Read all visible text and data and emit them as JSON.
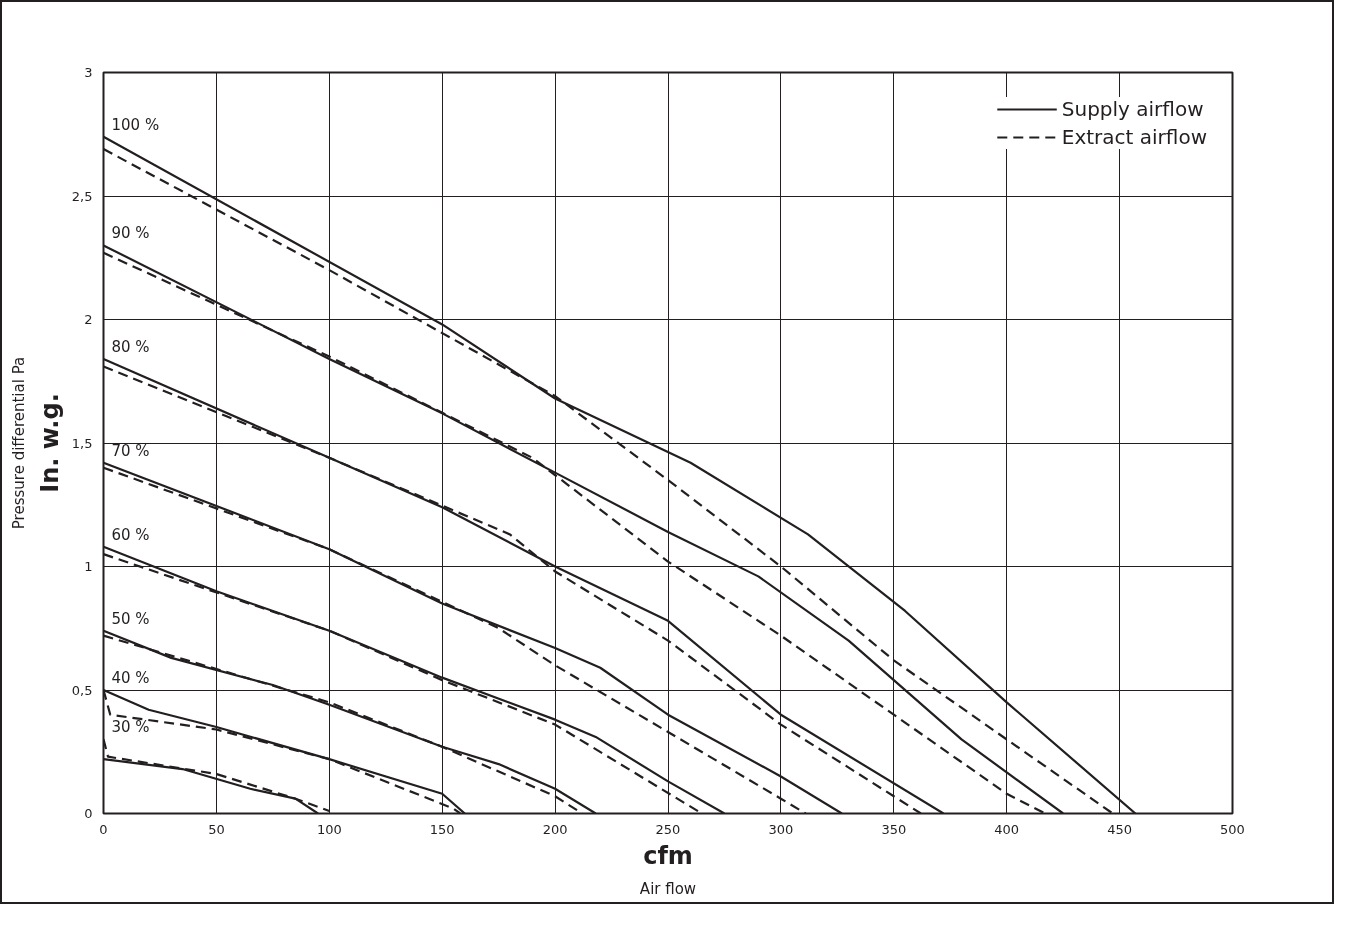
{
  "chart_data": {
    "type": "line",
    "xlabel": "cfm",
    "ylabel": "In. w.g.",
    "xlim": [
      0,
      500
    ],
    "ylim": [
      0,
      3
    ],
    "xticks": [
      0,
      50,
      100,
      150,
      200,
      250,
      300,
      350,
      400,
      450,
      500
    ],
    "yticks": [
      0,
      {
        "value": 0.5,
        "label": "0,5"
      },
      1,
      {
        "value": 1.5,
        "label": "1,5"
      },
      2,
      {
        "value": 2.5,
        "label": "2,5"
      },
      3
    ],
    "grid": true,
    "legend": "top right",
    "marker": "none",
    "series": [
      {
        "name": "Supply airflow",
        "color": "#231f20",
        "line_style": "solid",
        "x": [
          0,
          150,
          200,
          260,
          312,
          355,
          400,
          457
        ],
        "values": [
          2.74,
          1.98,
          1.68,
          1.42,
          1.13,
          0.82,
          0.45,
          0
        ]
      },
      {
        "name": "Extract airflow",
        "color": "#231f20",
        "line_style": "dashed",
        "x": [
          0,
          100,
          200,
          250,
          300,
          350,
          400,
          447
        ],
        "values": [
          2.69,
          2.2,
          1.69,
          1.35,
          1.0,
          0.62,
          0.3,
          0
        ]
      },
      {
        "color": "#231f20",
        "line_style": "solid",
        "x": [
          0,
          100,
          150,
          200,
          250,
          290,
          330,
          380,
          425
        ],
        "values": [
          2.3,
          1.84,
          1.62,
          1.38,
          1.14,
          0.96,
          0.7,
          0.3,
          0
        ]
      },
      {
        "color": "#231f20",
        "line_style": "dashed",
        "x": [
          0,
          100,
          190,
          250,
          300,
          350,
          400,
          417
        ],
        "values": [
          2.27,
          1.85,
          1.44,
          1.02,
          0.72,
          0.4,
          0.08,
          0
        ]
      },
      {
        "color": "#231f20",
        "line_style": "solid",
        "x": [
          0,
          100,
          150,
          200,
          250,
          300,
          372
        ],
        "values": [
          1.84,
          1.44,
          1.24,
          1.0,
          0.78,
          0.4,
          0
        ]
      },
      {
        "color": "#231f20",
        "line_style": "dashed",
        "x": [
          0,
          100,
          180,
          200,
          250,
          300,
          362
        ],
        "values": [
          1.81,
          1.44,
          1.13,
          0.98,
          0.7,
          0.36,
          0
        ]
      },
      {
        "color": "#231f20",
        "line_style": "solid",
        "x": [
          0,
          100,
          150,
          200,
          220,
          250,
          300,
          327
        ],
        "values": [
          1.42,
          1.07,
          0.85,
          0.67,
          0.59,
          0.4,
          0.15,
          0
        ]
      },
      {
        "color": "#231f20",
        "line_style": "dashed",
        "x": [
          0,
          100,
          175,
          200,
          250,
          300,
          311
        ],
        "values": [
          1.4,
          1.07,
          0.75,
          0.6,
          0.33,
          0.06,
          0
        ]
      },
      {
        "color": "#231f20",
        "line_style": "solid",
        "x": [
          0,
          50,
          100,
          150,
          200,
          218,
          250,
          275
        ],
        "values": [
          1.08,
          0.9,
          0.74,
          0.55,
          0.38,
          0.31,
          0.13,
          0
        ]
      },
      {
        "color": "#231f20",
        "line_style": "dashed",
        "x": [
          0,
          100,
          150,
          200,
          265
        ],
        "values": [
          1.05,
          0.74,
          0.54,
          0.36,
          0
        ]
      },
      {
        "color": "#231f20",
        "line_style": "solid",
        "x": [
          0,
          30,
          75,
          100,
          150,
          175,
          200,
          218
        ],
        "values": [
          0.74,
          0.63,
          0.52,
          0.44,
          0.27,
          0.2,
          0.1,
          0
        ]
      },
      {
        "color": "#231f20",
        "line_style": "dashed",
        "x": [
          0,
          100,
          150,
          200,
          212
        ],
        "values": [
          0.72,
          0.45,
          0.27,
          0.07,
          0
        ]
      },
      {
        "color": "#231f20",
        "line_style": "solid",
        "x": [
          0,
          20,
          50,
          100,
          150,
          160
        ],
        "values": [
          0.5,
          0.42,
          0.35,
          0.22,
          0.08,
          0
        ]
      },
      {
        "color": "#231f20",
        "line_style": "dashed",
        "x": [
          0,
          3,
          50,
          100,
          155,
          158
        ],
        "values": [
          0.5,
          0.4,
          0.34,
          0.22,
          0.02,
          0
        ]
      },
      {
        "color": "#231f20",
        "line_style": "solid",
        "x": [
          0,
          35,
          65,
          85,
          95
        ],
        "values": [
          0.22,
          0.18,
          0.1,
          0.06,
          0
        ]
      },
      {
        "color": "#231f20",
        "line_style": "dashed",
        "x": [
          0,
          2,
          50,
          85,
          100
        ],
        "values": [
          0.3,
          0.23,
          0.16,
          0.06,
          0.01
        ]
      }
    ],
    "annotations": [
      "Pressure differential Pa",
      "Air flow",
      "100 %",
      "90 %",
      "80 %",
      "70 %",
      "60 %",
      "50 %",
      "40 %",
      "30 %"
    ]
  }
}
